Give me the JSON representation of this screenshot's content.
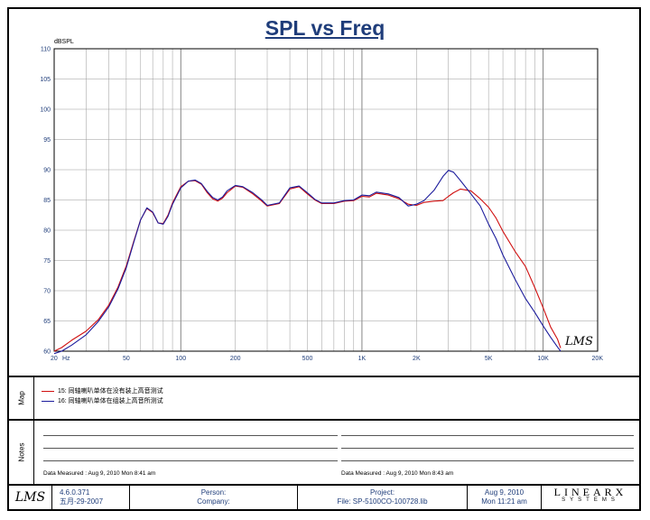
{
  "title": "SPL vs Freq",
  "chart_data": {
    "type": "line",
    "ylabel": "dBSPL",
    "xlabel": "Hz",
    "x_scale": "log",
    "xlim": [
      20,
      20000
    ],
    "ylim": [
      60,
      110
    ],
    "y_ticks": [
      60,
      65,
      70,
      75,
      80,
      85,
      90,
      95,
      100,
      105,
      110
    ],
    "x_ticks": [
      {
        "value": 20,
        "label": "20"
      },
      {
        "value": 50,
        "label": "50"
      },
      {
        "value": 100,
        "label": "100"
      },
      {
        "value": 200,
        "label": "200"
      },
      {
        "value": 500,
        "label": "500"
      },
      {
        "value": 1000,
        "label": "1K"
      },
      {
        "value": 2000,
        "label": "2K"
      },
      {
        "value": 5000,
        "label": "5K"
      },
      {
        "value": 10000,
        "label": "10K"
      },
      {
        "value": 20000,
        "label": "20K"
      }
    ],
    "grid": true,
    "series": [
      {
        "name": "15: 同轴喇叭单体在没有装上高音测试",
        "color": "#d01010",
        "x": [
          20,
          22,
          25,
          30,
          35,
          40,
          45,
          50,
          55,
          60,
          65,
          70,
          75,
          80,
          85,
          90,
          100,
          110,
          120,
          130,
          140,
          150,
          160,
          170,
          180,
          200,
          220,
          250,
          280,
          300,
          350,
          400,
          450,
          500,
          550,
          600,
          700,
          800,
          900,
          1000,
          1100,
          1200,
          1400,
          1600,
          1800,
          2000,
          2200,
          2500,
          2800,
          3000,
          3200,
          3500,
          4000,
          4500,
          5000,
          5500,
          6000,
          7000,
          8000,
          9000,
          10000,
          11000,
          12000,
          12500
        ],
        "y": [
          60,
          60.6,
          61.8,
          63.3,
          65.2,
          67.6,
          70.6,
          74.1,
          78.2,
          81.7,
          83.6,
          82.9,
          81.2,
          81.1,
          82.5,
          84.5,
          87.2,
          88.1,
          88.2,
          87.6,
          86.2,
          85.2,
          84.8,
          85.3,
          86.2,
          87.3,
          87.1,
          86.0,
          84.8,
          84.0,
          84.4,
          86.8,
          87.2,
          86.0,
          85.0,
          84.4,
          84.4,
          84.8,
          84.9,
          85.6,
          85.5,
          86.1,
          85.8,
          85.2,
          84.3,
          84.1,
          84.6,
          84.8,
          84.9,
          85.6,
          86.2,
          86.8,
          86.5,
          85.2,
          83.8,
          82.0,
          79.8,
          76.5,
          74.0,
          70.5,
          67.2,
          64.0,
          62.0,
          60.5
        ]
      },
      {
        "name": "16: 同轴喇叭单体在组装上高音所测试",
        "color": "#1c1c9c",
        "x": [
          20,
          22,
          25,
          30,
          35,
          40,
          45,
          50,
          55,
          60,
          65,
          70,
          75,
          80,
          85,
          90,
          100,
          110,
          120,
          130,
          140,
          150,
          160,
          170,
          180,
          200,
          220,
          250,
          280,
          300,
          350,
          400,
          450,
          500,
          550,
          600,
          700,
          800,
          900,
          1000,
          1100,
          1200,
          1400,
          1600,
          1800,
          2000,
          2200,
          2500,
          2800,
          3000,
          3200,
          3500,
          4000,
          4500,
          5000,
          5500,
          6000,
          7000,
          8000,
          9000,
          10000,
          11000,
          12000,
          12500
        ],
        "y": [
          59.6,
          60.0,
          61.0,
          62.7,
          64.9,
          67.3,
          70.3,
          73.8,
          78.0,
          81.7,
          83.7,
          83.0,
          81.2,
          81.0,
          82.3,
          84.3,
          87.0,
          88.1,
          88.3,
          87.7,
          86.4,
          85.4,
          85.0,
          85.5,
          86.5,
          87.4,
          87.2,
          86.2,
          85.0,
          84.1,
          84.5,
          87.0,
          87.3,
          86.2,
          85.1,
          84.5,
          84.5,
          84.9,
          85.0,
          85.8,
          85.7,
          86.3,
          86.0,
          85.4,
          84.0,
          84.3,
          84.9,
          86.6,
          88.9,
          89.9,
          89.6,
          88.2,
          86.0,
          84.0,
          81.0,
          78.6,
          75.9,
          71.9,
          68.7,
          66.4,
          64.2,
          62.3,
          60.7,
          60.0
        ]
      }
    ]
  },
  "brand": "LMS",
  "legend": [
    {
      "label": "15: 同轴喇叭单体在没有装上高音测试",
      "color": "#d01010"
    },
    {
      "label": "16: 同轴喇叭单体在组装上高音所测试",
      "color": "#1c1c9c"
    }
  ],
  "sections": {
    "map": "Map",
    "notes": "Notes"
  },
  "notes": {
    "left_date": "Data Measured : Aug 9, 2010  Mon  8:41 am",
    "right_date": "Data Measured : Aug 9, 2010  Mon  8:43 am"
  },
  "footer": {
    "logo": "LMS",
    "version": "4.6.0.371",
    "version_date": "五月-29-2007",
    "person": "Person:",
    "company": "Company:",
    "project": "Project:",
    "file": "File: SP-5100CO-100728.lib",
    "date": "Aug 9, 2010",
    "time": "Mon 11:21 am",
    "vendor_logo": "LINEARX",
    "vendor_sub": "SYSTEMS"
  }
}
